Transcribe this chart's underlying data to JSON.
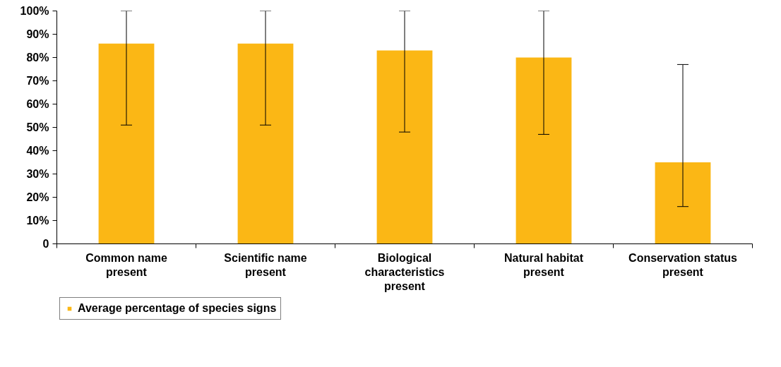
{
  "chart_data": {
    "type": "bar",
    "categories": [
      "Common name present",
      "Scientific name present",
      "Biological characteristics present",
      "Natural habitat present",
      "Conservation status present"
    ],
    "series": [
      {
        "name": "Average percentage of species signs",
        "color": "#fbb715",
        "values": [
          86,
          86,
          83,
          80,
          35
        ],
        "errors": [
          [
            51,
            100
          ],
          [
            51,
            100
          ],
          [
            48,
            100
          ],
          [
            47,
            100
          ],
          [
            16,
            77
          ]
        ]
      }
    ],
    "ylim": [
      0,
      100
    ],
    "yticks": [
      0,
      {
        "value": 10,
        "label": "10%"
      },
      {
        "value": 20,
        "label": "20%"
      },
      {
        "value": 30,
        "label": "30%"
      },
      {
        "value": 40,
        "label": "40%"
      },
      {
        "value": 50,
        "label": "50%"
      },
      {
        "value": 60,
        "label": "60%"
      },
      {
        "value": 70,
        "label": "70%"
      },
      {
        "value": 80,
        "label": "80%"
      },
      {
        "value": 90,
        "label": "90%"
      },
      {
        "value": 100,
        "label": "100%"
      }
    ],
    "grid": false,
    "legend": "bottom left"
  }
}
